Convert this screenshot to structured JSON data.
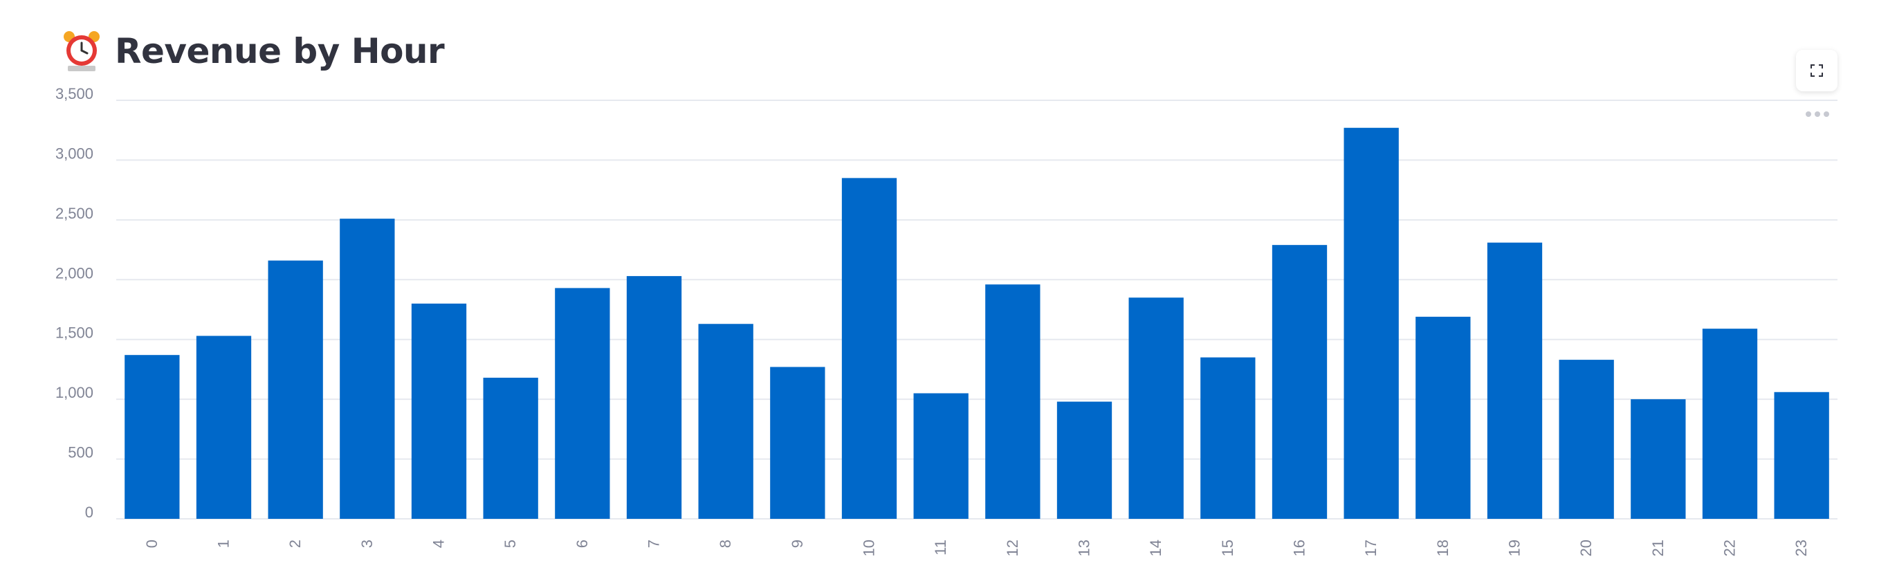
{
  "page": {
    "title": "Revenue by Hour"
  },
  "icons": {
    "title_icon": "alarm-clock-icon",
    "fullscreen": "fullscreen-icon",
    "more": "more-horizontal-icon"
  },
  "colors": {
    "bar": "#0068c9",
    "grid": "#e6e9ef",
    "text": "#31333f",
    "tick": "#808495"
  },
  "chart_data": {
    "type": "bar",
    "categories": [
      "0",
      "1",
      "2",
      "3",
      "4",
      "5",
      "6",
      "7",
      "8",
      "9",
      "10",
      "11",
      "12",
      "13",
      "14",
      "15",
      "16",
      "17",
      "18",
      "19",
      "20",
      "21",
      "22",
      "23"
    ],
    "values": [
      1370,
      1530,
      2160,
      2510,
      1800,
      1180,
      1930,
      2030,
      1630,
      1270,
      2850,
      1050,
      1960,
      980,
      1850,
      1350,
      2290,
      3270,
      1690,
      2310,
      1330,
      1000,
      1590,
      1060
    ],
    "yticks": [
      "0",
      "500",
      "1,000",
      "1,500",
      "2,000",
      "2,500",
      "3,000",
      "3,500"
    ],
    "ylim": [
      0,
      3500
    ],
    "grid": true,
    "title": "",
    "xlabel": "",
    "ylabel": ""
  }
}
